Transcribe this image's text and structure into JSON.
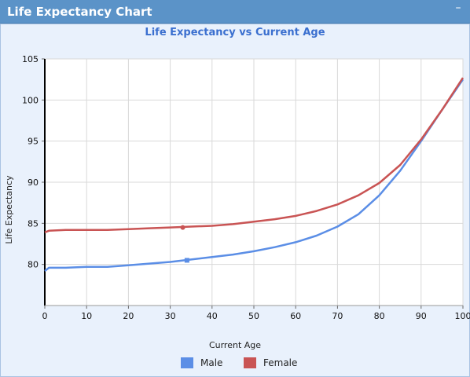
{
  "window": {
    "title": "Life Expectancy Chart",
    "minimize_icon": "minimize-icon"
  },
  "chart_data": {
    "type": "line",
    "title": "Life Expectancy vs Current Age",
    "xlabel": "Current Age",
    "ylabel": "Life Expectancy",
    "xlim": [
      0,
      100
    ],
    "ylim": [
      75,
      105
    ],
    "xticks": [
      0,
      10,
      20,
      30,
      40,
      50,
      60,
      70,
      80,
      90,
      100
    ],
    "yticks": [
      80,
      85,
      90,
      95,
      100,
      105
    ],
    "grid": true,
    "legend_position": "bottom",
    "series": [
      {
        "name": "Male",
        "color": "#5b8ee6",
        "marker": "square",
        "marker_point": [
          34,
          80.5
        ],
        "points": [
          [
            0,
            79.2
          ],
          [
            1,
            79.6
          ],
          [
            5,
            79.6
          ],
          [
            10,
            79.7
          ],
          [
            15,
            79.7
          ],
          [
            20,
            79.9
          ],
          [
            25,
            80.1
          ],
          [
            30,
            80.3
          ],
          [
            35,
            80.6
          ],
          [
            40,
            80.9
          ],
          [
            45,
            81.2
          ],
          [
            50,
            81.6
          ],
          [
            55,
            82.1
          ],
          [
            60,
            82.7
          ],
          [
            65,
            83.5
          ],
          [
            70,
            84.6
          ],
          [
            75,
            86.1
          ],
          [
            80,
            88.4
          ],
          [
            85,
            91.4
          ],
          [
            90,
            95.0
          ],
          [
            95,
            98.8
          ],
          [
            100,
            102.5
          ]
        ]
      },
      {
        "name": "Female",
        "color": "#c95454",
        "marker": "circle",
        "marker_point": [
          33,
          84.5
        ],
        "points": [
          [
            0,
            83.9
          ],
          [
            1,
            84.1
          ],
          [
            5,
            84.2
          ],
          [
            10,
            84.2
          ],
          [
            15,
            84.2
          ],
          [
            20,
            84.3
          ],
          [
            25,
            84.4
          ],
          [
            30,
            84.5
          ],
          [
            35,
            84.6
          ],
          [
            40,
            84.7
          ],
          [
            45,
            84.9
          ],
          [
            50,
            85.2
          ],
          [
            55,
            85.5
          ],
          [
            60,
            85.9
          ],
          [
            65,
            86.5
          ],
          [
            70,
            87.3
          ],
          [
            75,
            88.4
          ],
          [
            80,
            89.9
          ],
          [
            85,
            92.1
          ],
          [
            90,
            95.2
          ],
          [
            95,
            98.8
          ],
          [
            100,
            102.7
          ]
        ]
      }
    ]
  }
}
